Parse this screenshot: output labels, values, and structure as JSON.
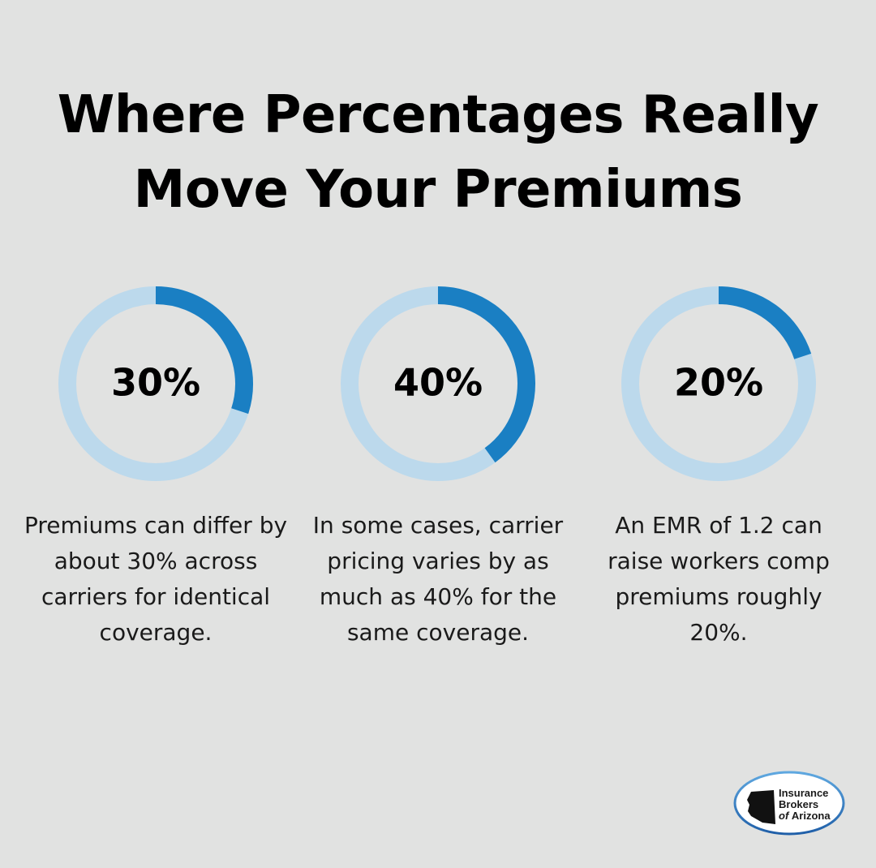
{
  "title_line1": "Where Percentages Really",
  "title_line2": "Move Your Premiums",
  "colors": {
    "background": "#e1e2e1",
    "ring_track": "#bcd9ec",
    "ring_fill": "#1a7fc3",
    "text": "#000000"
  },
  "chart_data": [
    {
      "type": "pie",
      "variant": "donut",
      "value": 30,
      "max": 100,
      "label": "30%",
      "caption": "Premiums can differ by about 30% across carriers for identical coverage."
    },
    {
      "type": "pie",
      "variant": "donut",
      "value": 40,
      "max": 100,
      "label": "40%",
      "caption": "In some cases, carrier pricing varies by as much as 40% for the same coverage."
    },
    {
      "type": "pie",
      "variant": "donut",
      "value": 20,
      "max": 100,
      "label": "20%",
      "caption": "An EMR of 1.2 can raise workers comp premiums roughly 20%."
    }
  ],
  "logo": {
    "line1": "Insurance",
    "line2": "Brokers",
    "line3_prefix": "of",
    "line3": "Arizona",
    "icon": "arizona-state-icon"
  }
}
